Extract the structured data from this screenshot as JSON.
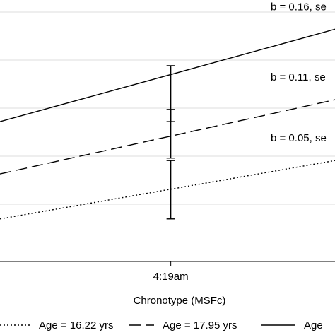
{
  "chart_data": {
    "type": "line",
    "title": "",
    "xlabel": "Chronotype (MSFc)",
    "ylabel": "",
    "grid": "horizontal",
    "x_ticks": [
      {
        "value": 0,
        "label": "4:19am"
      }
    ],
    "xlim": [
      -1.3,
      1.25
    ],
    "ylim": [
      -1.05,
      1.1
    ],
    "legend_position": "bottom",
    "series": [
      {
        "name": "Age = 16.22 yrs",
        "style": "dotted",
        "color": "#000000",
        "x": [
          -1.3,
          1.25
        ],
        "y": [
          -0.7,
          -0.22
        ],
        "error_bar": {
          "x": 0,
          "low": -0.7,
          "high": -0.22
        },
        "annotation": "b = 0.05, se"
      },
      {
        "name": "Age = 17.95 yrs",
        "style": "dashed",
        "color": "#000000",
        "x": [
          -1.3,
          1.25
        ],
        "y": [
          -0.33,
          0.28
        ],
        "error_bar": {
          "x": 0,
          "low": -0.2,
          "high": 0.2
        },
        "annotation": "b = 0.11, se"
      },
      {
        "name": "Age",
        "style": "solid",
        "color": "#000000",
        "x": [
          -1.3,
          1.25
        ],
        "y": [
          0.1,
          0.86
        ],
        "error_bar": {
          "x": 0,
          "low": 0.1,
          "high": 0.56
        },
        "annotation": "b = 0.16, se"
      }
    ]
  }
}
